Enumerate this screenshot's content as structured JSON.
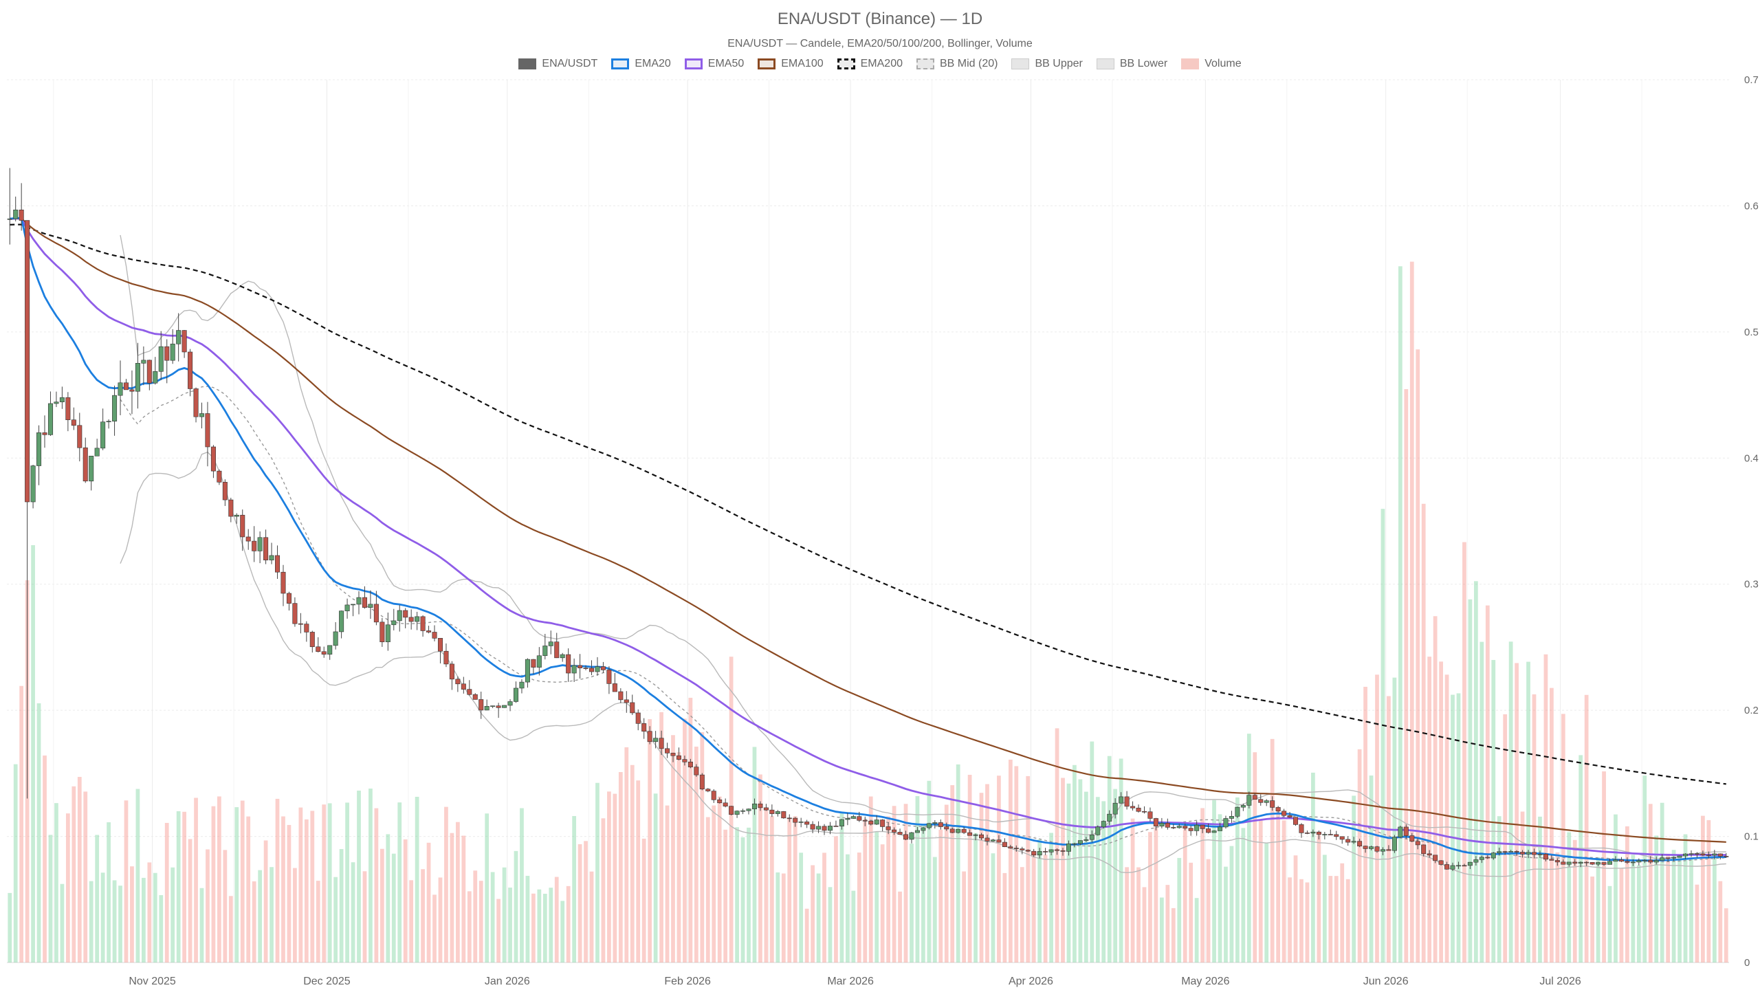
{
  "title": "ENA/USDT (Binance) — 1D",
  "subtitle": "ENA/USDT — Candele, EMA20/50/100/200, Bollinger, Volume",
  "colors": {
    "up": "#5f9e6e",
    "down": "#c0554a",
    "volume_up": "rgba(105,205,145,0.38)",
    "volume_down": "rgba(245,135,125,0.40)",
    "ema20": "#1c7fe0",
    "ema50": "#8f5de8",
    "ema100": "#8b4a22",
    "ema200": "#111111",
    "bb": "#b9b9b9",
    "grid": "#ececec"
  },
  "legend": [
    {
      "label": "ENA/USDT",
      "kind": "candle"
    },
    {
      "label": "EMA20",
      "kind": "ema20"
    },
    {
      "label": "EMA50",
      "kind": "ema50"
    },
    {
      "label": "EMA100",
      "kind": "ema100"
    },
    {
      "label": "EMA200",
      "kind": "ema200"
    },
    {
      "label": "BB Mid (20)",
      "kind": "bbmid"
    },
    {
      "label": "BB Upper",
      "kind": "bbupper"
    },
    {
      "label": "BB Lower",
      "kind": "bblower"
    },
    {
      "label": "Volume",
      "kind": "volume"
    }
  ],
  "chart_data": {
    "type": "candlestick",
    "pair": "ENA/USDT",
    "interval": "1D",
    "x_start": "2025-10-07",
    "x_end": "2026-07-29",
    "y_axis": {
      "position": "right",
      "ylim": [
        0,
        0.7
      ],
      "ticks": [
        0,
        0.1,
        0.2,
        0.3,
        0.4,
        0.5,
        0.6,
        0.7
      ]
    },
    "x_tick_labels": [
      "Nov 2025",
      "Dec 2025",
      "Jan 2026",
      "Feb 2026",
      "Mar 2026",
      "Apr 2026",
      "May 2026",
      "Jun 2026",
      "Jul 2026"
    ],
    "grid": true,
    "close_anchors": [
      [
        "2025-10-07",
        0.59
      ],
      [
        "2025-10-09",
        0.6
      ],
      [
        "2025-10-10",
        0.37
      ],
      [
        "2025-10-12",
        0.42
      ],
      [
        "2025-10-16",
        0.45
      ],
      [
        "2025-10-20",
        0.39
      ],
      [
        "2025-10-26",
        0.46
      ],
      [
        "2025-11-01",
        0.47
      ],
      [
        "2025-11-05",
        0.5
      ],
      [
        "2025-11-08",
        0.44
      ],
      [
        "2025-11-12",
        0.38
      ],
      [
        "2025-11-16",
        0.34
      ],
      [
        "2025-11-19",
        0.33
      ],
      [
        "2025-11-22",
        0.31
      ],
      [
        "2025-11-25",
        0.27
      ],
      [
        "2025-11-30",
        0.245
      ],
      [
        "2025-12-03",
        0.28
      ],
      [
        "2025-12-08",
        0.285
      ],
      [
        "2025-12-10",
        0.255
      ],
      [
        "2025-12-13",
        0.28
      ],
      [
        "2025-12-18",
        0.265
      ],
      [
        "2025-12-22",
        0.22
      ],
      [
        "2025-12-27",
        0.205
      ],
      [
        "2026-01-01",
        0.205
      ],
      [
        "2026-01-04",
        0.235
      ],
      [
        "2026-01-08",
        0.255
      ],
      [
        "2026-01-11",
        0.23
      ],
      [
        "2026-01-15",
        0.235
      ],
      [
        "2026-01-19",
        0.22
      ],
      [
        "2026-01-24",
        0.18
      ],
      [
        "2026-01-30",
        0.165
      ],
      [
        "2026-02-03",
        0.14
      ],
      [
        "2026-02-08",
        0.12
      ],
      [
        "2026-02-13",
        0.125
      ],
      [
        "2026-02-18",
        0.115
      ],
      [
        "2026-02-24",
        0.105
      ],
      [
        "2026-03-01",
        0.115
      ],
      [
        "2026-03-06",
        0.11
      ],
      [
        "2026-03-10",
        0.1
      ],
      [
        "2026-03-14",
        0.11
      ],
      [
        "2026-03-18",
        0.105
      ],
      [
        "2026-03-25",
        0.095
      ],
      [
        "2026-04-01",
        0.085
      ],
      [
        "2026-04-06",
        0.09
      ],
      [
        "2026-04-11",
        0.1
      ],
      [
        "2026-04-16",
        0.13
      ],
      [
        "2026-04-22",
        0.11
      ],
      [
        "2026-05-02",
        0.105
      ],
      [
        "2026-05-08",
        0.13
      ],
      [
        "2026-05-12",
        0.125
      ],
      [
        "2026-05-17",
        0.105
      ],
      [
        "2026-05-24",
        0.1
      ],
      [
        "2026-05-28",
        0.09
      ],
      [
        "2026-06-01",
        0.09
      ],
      [
        "2026-06-03",
        0.11
      ],
      [
        "2026-06-05",
        0.095
      ],
      [
        "2026-06-11",
        0.075
      ],
      [
        "2026-06-16",
        0.08
      ],
      [
        "2026-06-22",
        0.09
      ],
      [
        "2026-07-02",
        0.078
      ],
      [
        "2026-07-12",
        0.08
      ],
      [
        "2026-07-19",
        0.082
      ],
      [
        "2026-07-24",
        0.088
      ],
      [
        "2026-07-29",
        0.082
      ]
    ],
    "volume_anchors": [
      [
        "2025-10-07",
        0.16
      ],
      [
        "2025-10-10",
        0.55
      ],
      [
        "2025-10-12",
        0.42
      ],
      [
        "2025-10-16",
        0.22
      ],
      [
        "2025-10-25",
        0.2
      ],
      [
        "2025-11-10",
        0.18
      ],
      [
        "2025-12-01",
        0.2
      ],
      [
        "2025-12-20",
        0.19
      ],
      [
        "2026-01-10",
        0.16
      ],
      [
        "2026-01-27",
        0.28
      ],
      [
        "2026-02-05",
        0.38
      ],
      [
        "2026-02-20",
        0.15
      ],
      [
        "2026-03-10",
        0.2
      ],
      [
        "2026-03-31",
        0.26
      ],
      [
        "2026-04-12",
        0.25
      ],
      [
        "2026-04-25",
        0.14
      ],
      [
        "2026-05-10",
        0.28
      ],
      [
        "2026-05-25",
        0.16
      ],
      [
        "2026-06-05",
        0.96
      ],
      [
        "2026-06-15",
        0.42
      ],
      [
        "2026-06-25",
        0.38
      ],
      [
        "2026-07-07",
        0.22
      ],
      [
        "2026-07-25",
        0.2
      ],
      [
        "2026-07-29",
        0.15
      ]
    ],
    "volume_spikes": [
      [
        "2025-10-10",
        0.6
      ],
      [
        "2026-01-22",
        0.31
      ],
      [
        "2026-02-08",
        0.48
      ],
      [
        "2026-03-24",
        0.28
      ],
      [
        "2026-04-16",
        0.32
      ],
      [
        "2026-05-09",
        0.33
      ],
      [
        "2026-06-04",
        0.9
      ],
      [
        "2026-06-05",
        1.1
      ],
      [
        "2026-06-07",
        0.72
      ],
      [
        "2026-06-15",
        0.57
      ],
      [
        "2026-06-23",
        0.47
      ],
      [
        "2026-07-05",
        0.42
      ]
    ]
  }
}
